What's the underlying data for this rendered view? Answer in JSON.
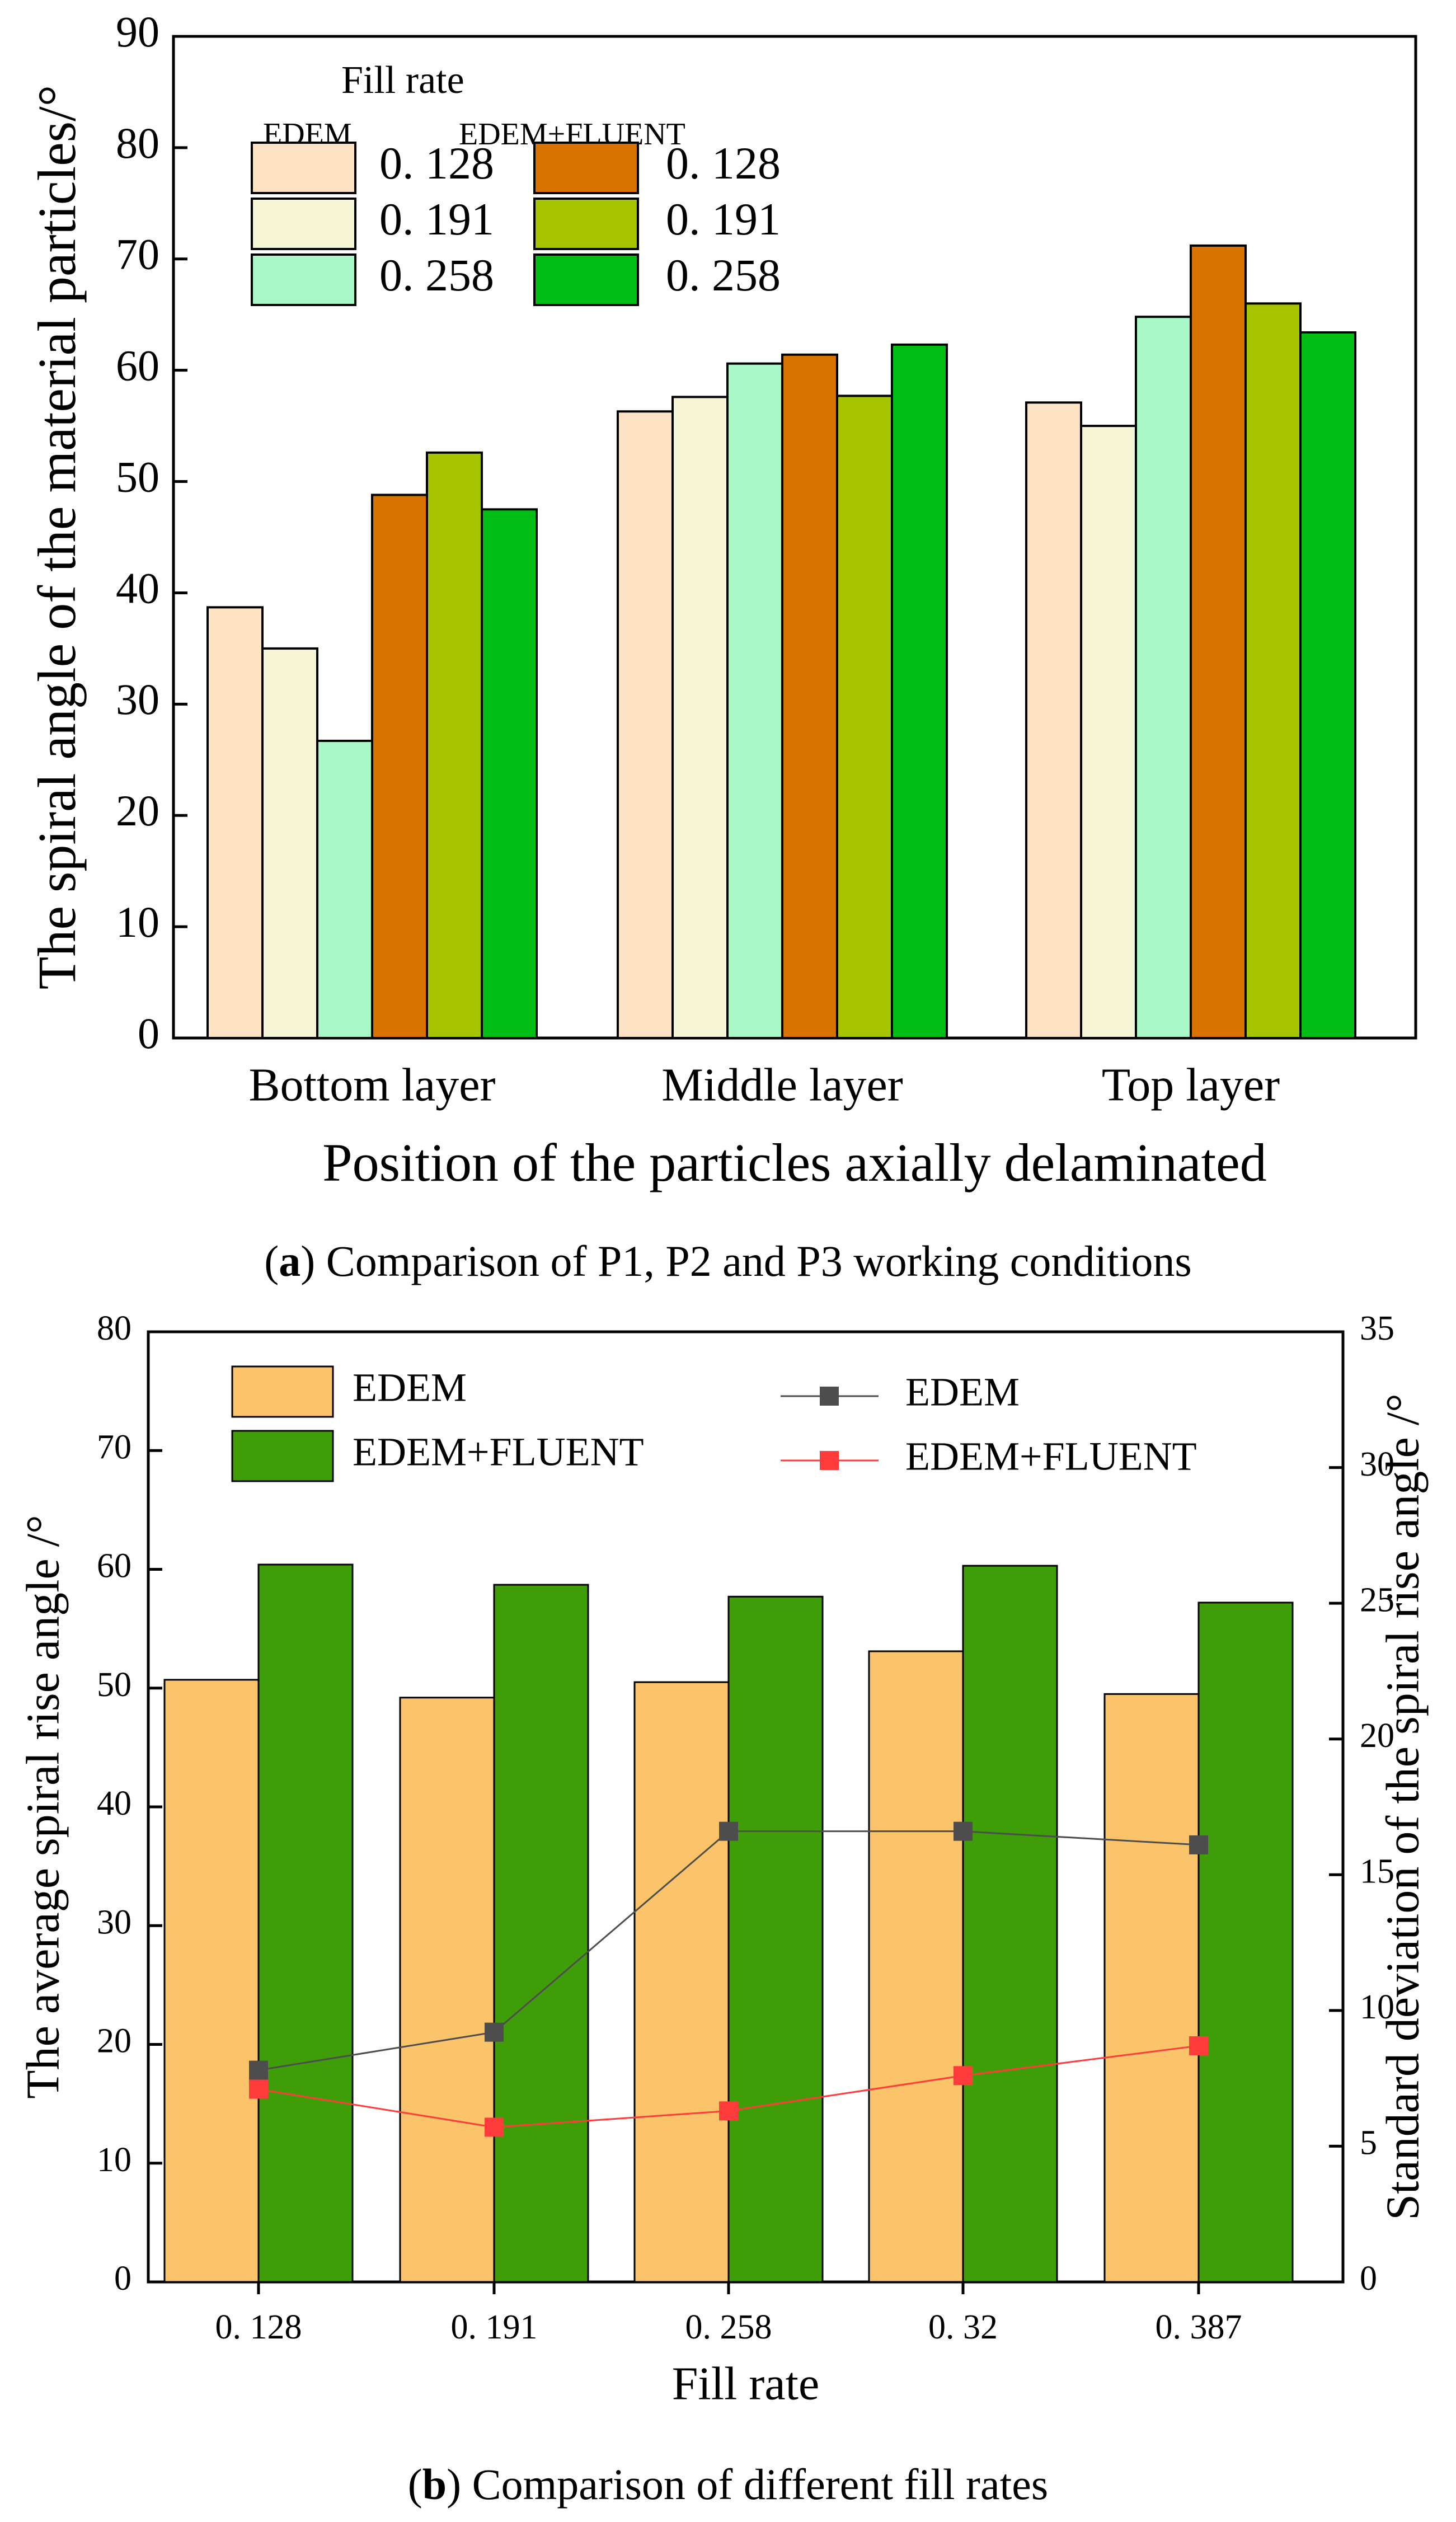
{
  "chart_data": [
    {
      "type": "bar",
      "caption_label": "a",
      "caption_text": "Comparison of P1, P2 and P3 working conditions",
      "xlabel": "Position of the particles axially delaminated",
      "ylabel": "The spiral angle of the material particles/°",
      "ylim": [
        0,
        90
      ],
      "yticks": [
        "0",
        "10",
        "20",
        "30",
        "40",
        "50",
        "60",
        "70",
        "80",
        "90"
      ],
      "categories": [
        "Bottom layer",
        "Middle layer",
        "Top layer"
      ],
      "legend_title": "Fill rate",
      "legend_groups": [
        "EDEM",
        "EDEM+FLUENT"
      ],
      "legend_placement": "top-left",
      "grid": false,
      "series": [
        {
          "name": "0. 128",
          "group": "EDEM",
          "color": "#FDE3C4",
          "values": [
            38.7,
            56.3,
            57.1
          ]
        },
        {
          "name": "0. 191",
          "group": "EDEM",
          "color": "#F6F6D6",
          "values": [
            35.0,
            57.6,
            55.0
          ]
        },
        {
          "name": "0. 258",
          "group": "EDEM",
          "color": "#A8F8C8",
          "values": [
            26.7,
            60.6,
            64.8
          ]
        },
        {
          "name": "0. 128",
          "group": "EDEM+FLUENT",
          "color": "#D87300",
          "values": [
            48.8,
            61.4,
            71.2
          ]
        },
        {
          "name": "0. 191",
          "group": "EDEM+FLUENT",
          "color": "#A6C400",
          "values": [
            52.6,
            57.7,
            66.0
          ]
        },
        {
          "name": "0. 258",
          "group": "EDEM+FLUENT",
          "color": "#00BE13",
          "values": [
            47.5,
            62.3,
            63.4
          ]
        }
      ]
    },
    {
      "type": "bar",
      "caption_label": "b",
      "caption_text": "Comparison of different fill rates",
      "xlabel": "Fill rate",
      "ylabel": "The average spiral rise angle /°",
      "ylabel_right": "Standard deviation of the spiral rise angle /°",
      "ylim": [
        0,
        80
      ],
      "ylim_right": [
        0,
        35
      ],
      "yticks": [
        "0",
        "10",
        "20",
        "30",
        "40",
        "50",
        "60",
        "70",
        "80"
      ],
      "yticks_right": [
        "0",
        "5",
        "10",
        "15",
        "20",
        "25",
        "30",
        "35"
      ],
      "categories": [
        "0. 128",
        "0. 191",
        "0. 258",
        "0. 32",
        "0. 387"
      ],
      "legend_placement": "top",
      "grid": false,
      "series": [
        {
          "name": "EDEM",
          "kind": "bar",
          "axis": "left",
          "color": "#FBC46A",
          "values": [
            50.7,
            49.2,
            50.5,
            53.1,
            49.5
          ]
        },
        {
          "name": "EDEM+FLUENT",
          "kind": "bar",
          "axis": "left",
          "color": "#3F9E07",
          "values": [
            60.4,
            58.7,
            57.7,
            60.3,
            57.2
          ]
        },
        {
          "name": "EDEM",
          "kind": "line",
          "axis": "right",
          "color": "#4D4D4D",
          "marker": "square",
          "values": [
            7.8,
            9.2,
            16.6,
            16.6,
            16.1
          ]
        },
        {
          "name": "EDEM+FLUENT",
          "kind": "line",
          "axis": "right",
          "color": "#FF3B3B",
          "marker": "square",
          "values": [
            7.1,
            5.7,
            6.3,
            7.6,
            8.7
          ]
        }
      ]
    }
  ]
}
